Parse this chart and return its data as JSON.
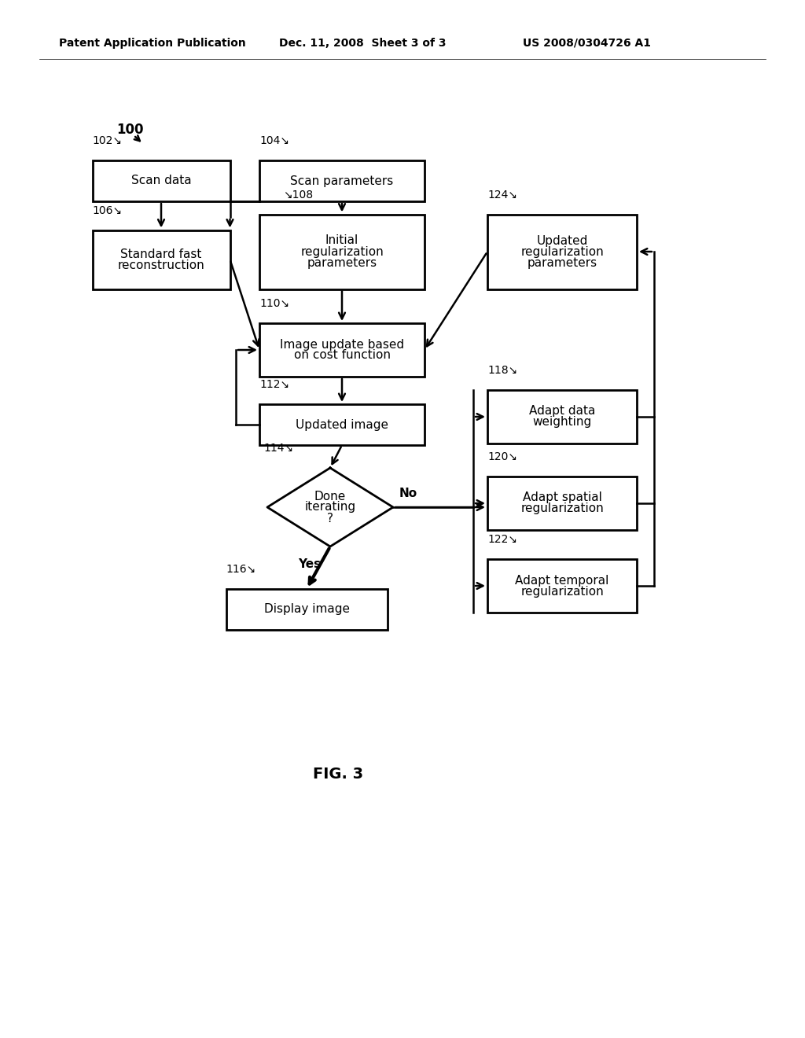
{
  "header_left": "Patent Application Publication",
  "header_mid": "Dec. 11, 2008  Sheet 3 of 3",
  "header_right": "US 2008/0304726 A1",
  "fig_label": "FIG. 3",
  "bg_color": "#ffffff"
}
